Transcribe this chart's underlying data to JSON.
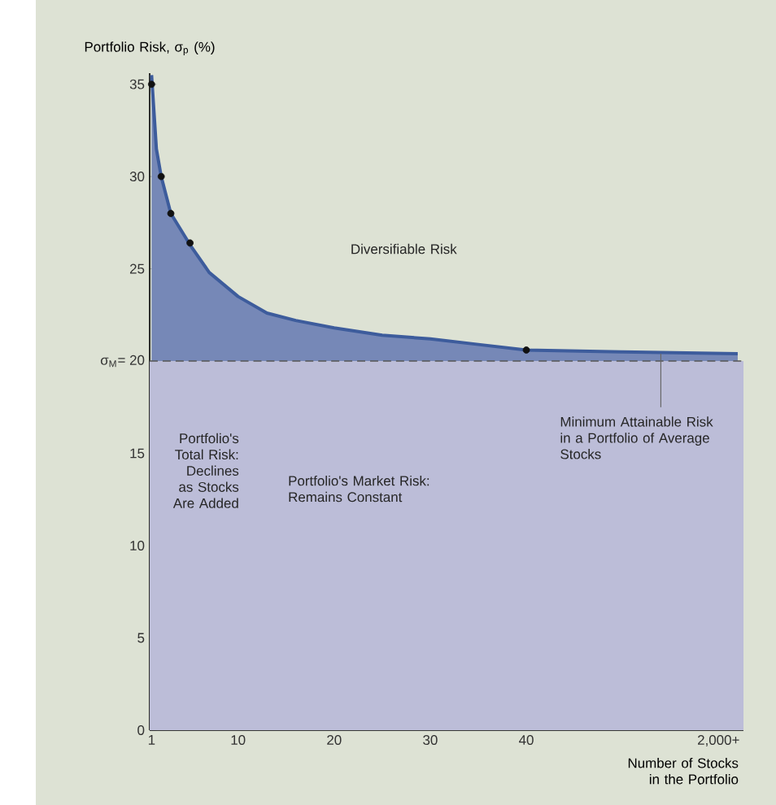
{
  "chart_data": {
    "type": "area",
    "xlabel": "Number of Stocks in the Portfolio",
    "ylabel": "Portfolio Risk, σ$_{p}$ (%)",
    "xlim": [
      0.8,
      62.6
    ],
    "ylim": [
      0,
      35.6
    ],
    "xticks": [
      1,
      10,
      20,
      30,
      40,
      {
        "value": 60,
        "label": "2,000+"
      }
    ],
    "yticks": [
      0,
      5,
      10,
      15,
      {
        "value": 20,
        "label": "σ$_{M}$= 20"
      },
      25,
      30,
      35
    ],
    "series": [
      {
        "color": "#3d5c9c",
        "x": [
          1,
          1.5,
          2,
          3,
          5,
          7,
          10,
          13,
          16,
          20,
          25,
          30,
          35,
          40,
          50,
          62
        ],
        "values": [
          35.5,
          31.5,
          30,
          28,
          26.3,
          24.8,
          23.5,
          22.6,
          22.2,
          21.8,
          21.4,
          21.2,
          20.9,
          20.6,
          20.5,
          20.4
        ]
      },
      {
        "type": "scatter",
        "marker": "circle",
        "color": "#111111",
        "x": [
          1,
          2,
          3,
          5,
          40
        ],
        "values": [
          35,
          30,
          28,
          26.4,
          20.6
        ]
      }
    ],
    "ref_lines": [
      {
        "axis": "y",
        "value": 20,
        "line_style": "dashed",
        "color": "#555555"
      }
    ],
    "bands": [
      {
        "axis": "y",
        "from": 0,
        "to": 20,
        "color": "#bcbdd8"
      }
    ],
    "annotations": [
      "Diversifiable Risk",
      {
        "text": "Minimum Attainable Risk in a Portfolio of Average Stocks",
        "x": 54,
        "y": 20.4
      },
      "Portfolio's Total Risk: Declines as Stocks Are Added",
      "Portfolio's Market Risk: Remains Constant"
    ],
    "grid": false
  }
}
